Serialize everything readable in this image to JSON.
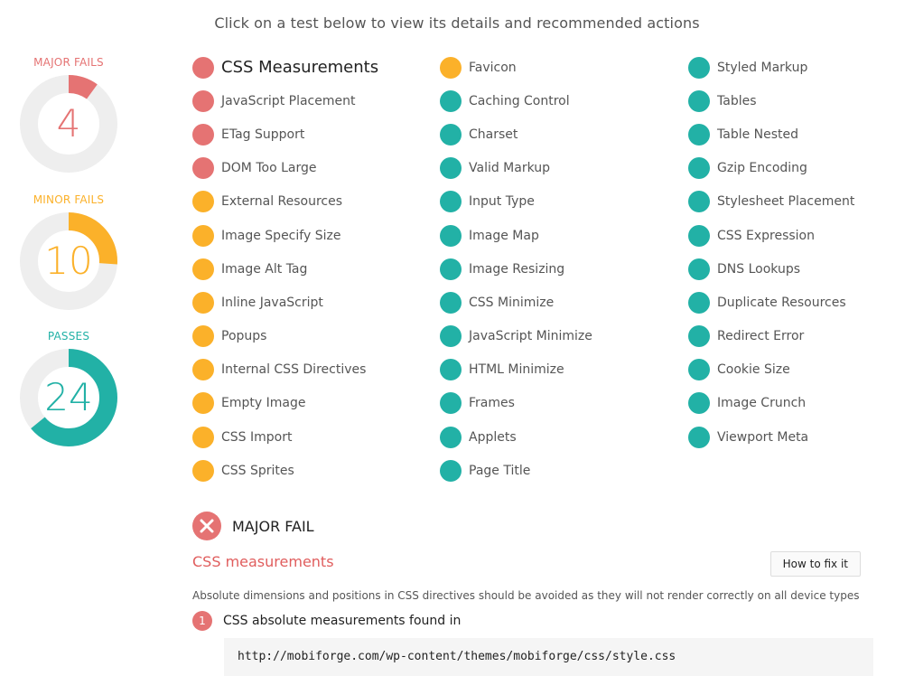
{
  "header": {
    "instruction": "Click on a test below to view its details and recommended actions"
  },
  "stats": [
    {
      "label": "MAJOR FAILS",
      "value": "4",
      "fraction": 0.1,
      "color": "#e57373"
    },
    {
      "label": "MINOR FAILS",
      "value": "10",
      "fraction": 0.26,
      "color": "#fbb12a"
    },
    {
      "label": "PASSES",
      "value": "24",
      "fraction": 0.64,
      "color": "#22b1a6"
    }
  ],
  "colors": {
    "major": "#e57373",
    "minor": "#fbb12a",
    "pass": "#22b1a6",
    "track": "#eeeeee"
  },
  "tests": {
    "col1": [
      {
        "label": "CSS Measurements",
        "status": "major"
      },
      {
        "label": "JavaScript Placement",
        "status": "major"
      },
      {
        "label": "ETag Support",
        "status": "major"
      },
      {
        "label": "DOM Too Large",
        "status": "major"
      },
      {
        "label": "External Resources",
        "status": "minor"
      },
      {
        "label": "Image Specify Size",
        "status": "minor"
      },
      {
        "label": "Image Alt Tag",
        "status": "minor"
      },
      {
        "label": "Inline JavaScript",
        "status": "minor"
      },
      {
        "label": "Popups",
        "status": "minor"
      },
      {
        "label": "Internal CSS Directives",
        "status": "minor"
      },
      {
        "label": "Empty Image",
        "status": "minor"
      },
      {
        "label": "CSS Import",
        "status": "minor"
      },
      {
        "label": "CSS Sprites",
        "status": "minor"
      }
    ],
    "col2": [
      {
        "label": "Favicon",
        "status": "minor"
      },
      {
        "label": "Caching Control",
        "status": "pass"
      },
      {
        "label": "Charset",
        "status": "pass"
      },
      {
        "label": "Valid Markup",
        "status": "pass"
      },
      {
        "label": "Input Type",
        "status": "pass"
      },
      {
        "label": "Image Map",
        "status": "pass"
      },
      {
        "label": "Image Resizing",
        "status": "pass"
      },
      {
        "label": "CSS Minimize",
        "status": "pass"
      },
      {
        "label": "JavaScript Minimize",
        "status": "pass"
      },
      {
        "label": "HTML Minimize",
        "status": "pass"
      },
      {
        "label": "Frames",
        "status": "pass"
      },
      {
        "label": "Applets",
        "status": "pass"
      },
      {
        "label": "Page Title",
        "status": "pass"
      }
    ],
    "col3": [
      {
        "label": "Styled Markup",
        "status": "pass"
      },
      {
        "label": "Tables",
        "status": "pass"
      },
      {
        "label": "Table Nested",
        "status": "pass"
      },
      {
        "label": "Gzip Encoding",
        "status": "pass"
      },
      {
        "label": "Stylesheet Placement",
        "status": "pass"
      },
      {
        "label": "CSS Expression",
        "status": "pass"
      },
      {
        "label": "DNS Lookups",
        "status": "pass"
      },
      {
        "label": "Duplicate Resources",
        "status": "pass"
      },
      {
        "label": "Redirect Error",
        "status": "pass"
      },
      {
        "label": "Cookie Size",
        "status": "pass"
      },
      {
        "label": "Image Crunch",
        "status": "pass"
      },
      {
        "label": "Viewport Meta",
        "status": "pass"
      }
    ]
  },
  "detail": {
    "status_label": "MAJOR FAIL",
    "test_name": "CSS measurements",
    "fix_button": "How to fix it",
    "description": "Absolute dimensions and positions in CSS directives should be avoided as they will not render correctly on all device types",
    "finding_number": "1",
    "finding_title": "CSS absolute measurements found in",
    "file_url": "http://mobiforge.com/wp-content/themes/mobiforge/css/style.css"
  }
}
